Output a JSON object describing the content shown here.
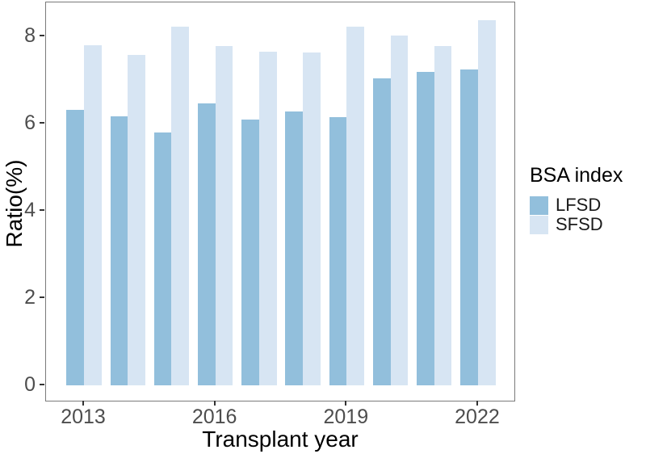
{
  "figure": {
    "background": "#ffffff",
    "panel_border_color": "#7a7a7a",
    "tick_label_color": "#4d4d4d",
    "axis_title_color": "#000000"
  },
  "chart_data": {
    "type": "bar",
    "title": "",
    "xlabel": "Transplant year",
    "ylabel": "Ratio(%)",
    "categories": [
      2013,
      2014,
      2015,
      2016,
      2017,
      2018,
      2019,
      2020,
      2021,
      2022
    ],
    "series": [
      {
        "name": "LFSD",
        "color": "#92bfdc",
        "values": [
          6.31,
          6.16,
          5.8,
          6.46,
          6.08,
          6.28,
          6.14,
          7.03,
          7.18,
          7.24
        ]
      },
      {
        "name": "SFSD",
        "color": "#d7e5f3",
        "values": [
          7.8,
          7.57,
          8.22,
          7.78,
          7.65,
          7.62,
          8.22,
          8.01,
          7.77,
          8.37
        ]
      }
    ],
    "ylim": [
      0,
      8.8
    ],
    "yticks": [
      "0",
      "2",
      "4",
      "6",
      "8"
    ],
    "xticks_labeled": [
      "2013",
      "2016",
      "2019",
      "2022"
    ],
    "grid": false,
    "legend": {
      "title": "BSA index",
      "position": "right"
    }
  }
}
